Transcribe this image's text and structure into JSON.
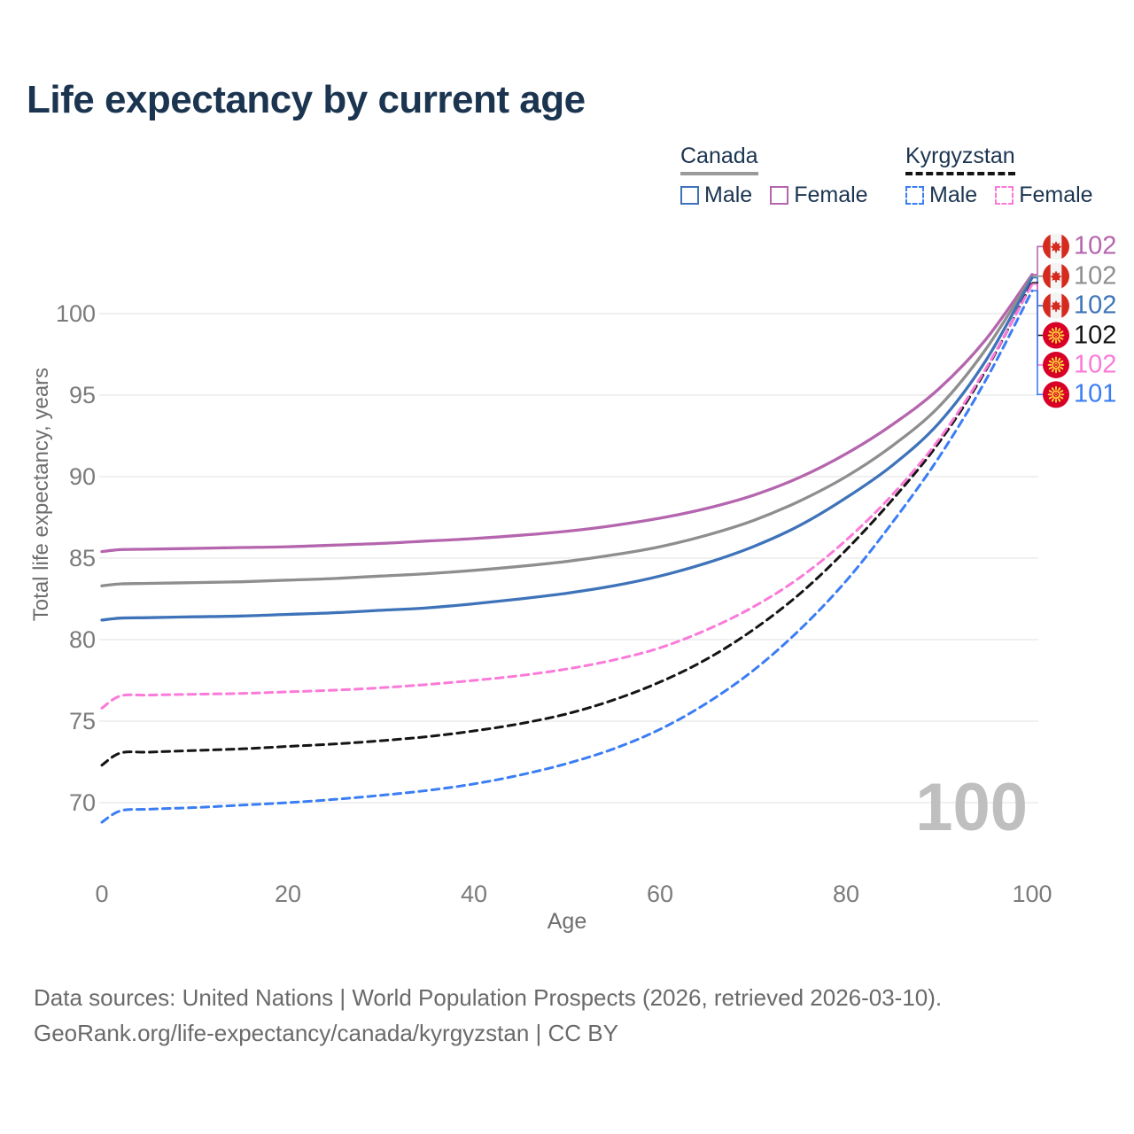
{
  "title": "Life expectancy by current age",
  "legend": {
    "groups": [
      {
        "name": "Canada",
        "line_style": "solid",
        "underline_color": "#9a9a9a",
        "items": [
          {
            "label": "Male",
            "color": "#3e73b9"
          },
          {
            "label": "Female",
            "color": "#b565ae"
          }
        ]
      },
      {
        "name": "Kyrgyzstan",
        "line_style": "dashed",
        "underline_color": "#141414",
        "items": [
          {
            "label": "Male",
            "color": "#3b7df5"
          },
          {
            "label": "Female",
            "color": "#fb7ad9"
          }
        ]
      }
    ]
  },
  "watermark": "100",
  "axis": {
    "x_label": "Age",
    "y_label": "Total life expectancy, years"
  },
  "footer": {
    "line1": "Data sources: United Nations | World Population Prospects (2026, retrieved 2026-03-10).",
    "line2": "GeoRank.org/life-expectancy/canada/kyrgyzstan | CC BY"
  },
  "chart_data": {
    "type": "line",
    "title": "Life expectancy by current age",
    "xlabel": "Age",
    "ylabel": "Total life expectancy, years",
    "xlim": [
      0,
      100
    ],
    "ylim": [
      67.5,
      103.5
    ],
    "x_ticks": [
      0,
      20,
      40,
      60,
      80,
      100
    ],
    "y_ticks": [
      70,
      75,
      80,
      85,
      90,
      95,
      100
    ],
    "grid": "horizontal",
    "legend_position": "top-right",
    "x": [
      0,
      2,
      5,
      10,
      15,
      20,
      25,
      30,
      35,
      40,
      45,
      50,
      55,
      60,
      65,
      70,
      75,
      80,
      85,
      90,
      95,
      100
    ],
    "series": [
      {
        "name": "Canada Female",
        "country": "Canada",
        "flag": "canada",
        "color": "#b565ae",
        "dash": false,
        "end_label": "102",
        "values": [
          85.4,
          85.52,
          85.55,
          85.6,
          85.65,
          85.7,
          85.8,
          85.9,
          86.05,
          86.2,
          86.4,
          86.65,
          87.0,
          87.45,
          88.05,
          88.85,
          89.95,
          91.4,
          93.2,
          95.4,
          98.4,
          102.4
        ]
      },
      {
        "name": "Canada Both sexes",
        "country": "Canada",
        "flag": "canada",
        "color": "#8e8e8e",
        "dash": false,
        "end_label": "102",
        "values": [
          83.3,
          83.42,
          83.45,
          83.5,
          83.55,
          83.65,
          83.75,
          83.9,
          84.05,
          84.25,
          84.5,
          84.8,
          85.2,
          85.7,
          86.4,
          87.3,
          88.5,
          90.0,
          91.9,
          94.3,
          97.8,
          102.3
        ]
      },
      {
        "name": "Canada Male",
        "country": "Canada",
        "flag": "canada",
        "color": "#3e73b9",
        "dash": false,
        "end_label": "102",
        "values": [
          81.2,
          81.32,
          81.35,
          81.4,
          81.45,
          81.55,
          81.65,
          81.8,
          81.95,
          82.2,
          82.5,
          82.85,
          83.3,
          83.9,
          84.7,
          85.7,
          87.0,
          88.7,
          90.7,
          93.3,
          97.1,
          102.2
        ]
      },
      {
        "name": "Kyrgyzstan Both sexes",
        "country": "Kyrgyzstan",
        "flag": "kyrgyzstan",
        "color": "#141414",
        "dash": true,
        "end_label": "102",
        "values": [
          72.3,
          73.05,
          73.1,
          73.2,
          73.3,
          73.45,
          73.6,
          73.8,
          74.05,
          74.4,
          74.85,
          75.45,
          76.3,
          77.4,
          78.8,
          80.6,
          82.8,
          85.5,
          88.6,
          92.1,
          96.5,
          101.9
        ]
      },
      {
        "name": "Kyrgyzstan Female",
        "country": "Kyrgyzstan",
        "flag": "kyrgyzstan",
        "color": "#fb7ad9",
        "dash": true,
        "end_label": "102",
        "values": [
          75.8,
          76.55,
          76.6,
          76.65,
          76.7,
          76.8,
          76.9,
          77.05,
          77.25,
          77.5,
          77.8,
          78.2,
          78.75,
          79.5,
          80.6,
          82.0,
          83.8,
          86.1,
          88.9,
          92.3,
          96.6,
          101.8
        ]
      },
      {
        "name": "Kyrgyzstan Male",
        "country": "Kyrgyzstan",
        "flag": "kyrgyzstan",
        "color": "#3b7df5",
        "dash": true,
        "end_label": "101",
        "values": [
          68.8,
          69.5,
          69.6,
          69.7,
          69.85,
          70.0,
          70.2,
          70.45,
          70.75,
          71.15,
          71.7,
          72.4,
          73.3,
          74.5,
          76.1,
          78.1,
          80.6,
          83.6,
          87.2,
          91.2,
          95.9,
          101.4
        ]
      }
    ]
  }
}
